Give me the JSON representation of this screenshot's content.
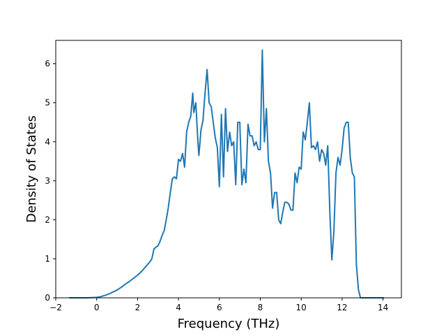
{
  "chart_data": {
    "type": "line",
    "xlabel": "Frequency (THz)",
    "ylabel": "Density of States",
    "xlim": [
      -2.0,
      14.9
    ],
    "ylim": [
      0,
      6.6
    ],
    "x_ticks": [
      -2,
      0,
      2,
      4,
      6,
      8,
      10,
      12,
      14
    ],
    "x_tick_labels": [
      "−2",
      "0",
      "2",
      "4",
      "6",
      "8",
      "10",
      "12",
      "14"
    ],
    "y_ticks": [
      0,
      1,
      2,
      3,
      4,
      5,
      6
    ],
    "y_tick_labels": [
      "0",
      "1",
      "2",
      "3",
      "4",
      "5",
      "6"
    ],
    "grid": false,
    "series": [
      {
        "color": "#1f77b4",
        "x": [
          -1.35,
          -1.0,
          -0.5,
          0.0,
          0.2,
          0.4,
          0.6,
          0.8,
          1.0,
          1.2,
          1.4,
          1.6,
          1.8,
          2.0,
          2.2,
          2.4,
          2.6,
          2.7,
          2.8,
          2.9,
          3.0,
          3.1,
          3.2,
          3.3,
          3.4,
          3.5,
          3.6,
          3.7,
          3.8,
          3.9,
          4.0,
          4.1,
          4.2,
          4.3,
          4.4,
          4.5,
          4.6,
          4.7,
          4.75,
          4.85,
          4.95,
          5.0,
          5.1,
          5.2,
          5.3,
          5.4,
          5.5,
          5.6,
          5.7,
          5.8,
          5.9,
          6.0,
          6.1,
          6.2,
          6.3,
          6.4,
          6.5,
          6.6,
          6.7,
          6.8,
          6.9,
          7.0,
          7.1,
          7.2,
          7.3,
          7.4,
          7.5,
          7.6,
          7.7,
          7.8,
          7.9,
          8.0,
          8.1,
          8.2,
          8.3,
          8.4,
          8.5,
          8.6,
          8.7,
          8.8,
          8.9,
          9.0,
          9.1,
          9.2,
          9.3,
          9.4,
          9.5,
          9.6,
          9.7,
          9.8,
          9.9,
          10.0,
          10.1,
          10.2,
          10.3,
          10.4,
          10.5,
          10.6,
          10.7,
          10.8,
          10.9,
          11.0,
          11.1,
          11.2,
          11.3,
          11.4,
          11.5,
          11.6,
          11.7,
          11.8,
          11.9,
          12.0,
          12.1,
          12.2,
          12.3,
          12.4,
          12.5,
          12.6,
          12.7,
          12.8,
          12.9,
          13.0,
          13.5,
          14.05
        ],
        "y": [
          0.0,
          0.0,
          0.0,
          0.01,
          0.03,
          0.06,
          0.1,
          0.15,
          0.2,
          0.27,
          0.35,
          0.42,
          0.5,
          0.58,
          0.68,
          0.8,
          0.92,
          1.0,
          1.25,
          1.3,
          1.33,
          1.45,
          1.6,
          1.72,
          2.0,
          2.3,
          2.7,
          3.05,
          3.1,
          3.05,
          3.55,
          3.5,
          3.7,
          3.35,
          4.25,
          4.5,
          4.65,
          5.25,
          4.75,
          5.0,
          4.0,
          3.65,
          4.3,
          4.55,
          5.25,
          5.85,
          5.0,
          4.9,
          4.5,
          4.1,
          3.85,
          2.85,
          4.7,
          3.1,
          4.85,
          3.75,
          4.25,
          3.9,
          4.0,
          2.9,
          4.5,
          4.5,
          2.9,
          3.3,
          2.95,
          4.45,
          4.15,
          4.15,
          3.9,
          4.0,
          3.8,
          3.8,
          6.35,
          4.0,
          4.85,
          3.5,
          3.2,
          2.3,
          2.7,
          2.7,
          2.0,
          1.9,
          2.2,
          2.45,
          2.45,
          2.4,
          2.25,
          2.25,
          3.2,
          2.95,
          3.35,
          3.3,
          4.25,
          4.05,
          4.5,
          5.0,
          3.85,
          3.9,
          3.8,
          4.0,
          3.5,
          3.8,
          3.7,
          3.4,
          3.9,
          2.2,
          0.97,
          1.7,
          3.2,
          3.6,
          3.4,
          3.8,
          4.35,
          4.5,
          4.5,
          3.6,
          3.2,
          3.1,
          0.85,
          0.2,
          0.0,
          0.0,
          0.0,
          0.0
        ]
      }
    ]
  }
}
